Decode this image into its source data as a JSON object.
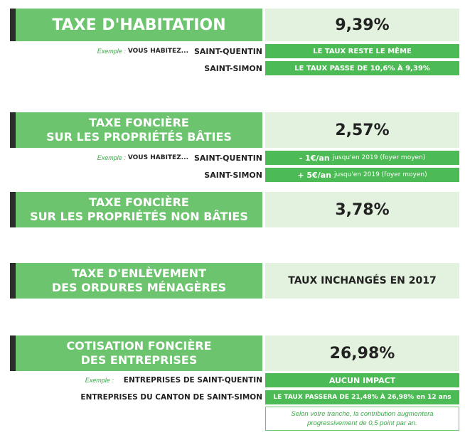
{
  "taxe_habitation": {
    "title": "TAXE D'HABITATION",
    "rate": "9,39%",
    "example_label": "Exemple :",
    "vous_habitez": "VOUS HABITEZ...",
    "city1": "SAINT-QUENTIN",
    "city1_result": "LE TAUX RESTE LE MÊME",
    "city2": "SAINT-SIMON",
    "city2_result": "LE TAUX PASSE DE 10,6% À 9,39%"
  },
  "taxe_fonciere_baties": {
    "title_line1": "TAXE FONCIÈRE",
    "title_line2": "SUR LES PROPRIÉTÉS BÂTIES",
    "rate": "2,57%",
    "example_label": "Exemple :",
    "vous_habitez": "VOUS HABITEZ...",
    "city1": "SAINT-QUENTIN",
    "city1_amount": "- 1€/an",
    "city1_detail": "jusqu'en 2019 (foyer moyen)",
    "city2": "SAINT-SIMON",
    "city2_amount": "+ 5€/an",
    "city2_detail": "jusqu'en 2019 (foyer moyen)"
  },
  "taxe_fonciere_non_baties": {
    "title_line1": "TAXE FONCIÈRE",
    "title_line2": "SUR LES PROPRIÉTÉS NON BÂTIES",
    "rate": "3,78%"
  },
  "teom": {
    "title_line1": "TAXE D'ENLÈVEMENT",
    "title_line2": "DES ORDURES MÉNAGÈRES",
    "value": "TAUX INCHANGÉS EN 2017"
  },
  "cfe": {
    "title_line1": "COTISATION FONCIÈRE",
    "title_line2": "DES ENTREPRISES",
    "rate": "26,98%",
    "example_label": "Exemple :",
    "row1_label": "ENTREPRISES DE SAINT-QUENTIN",
    "row1_result": "AUCUN IMPACT",
    "row2_label": "ENTREPRISES DU CANTON DE SAINT-SIMON",
    "row2_result": "LE TAUX PASSERA DE 21,48% À 26,98% en 12 ans",
    "note_line1": "Selon votre tranche, la contribution augmentera",
    "note_line2": "progressivement de 0,5 point par an."
  },
  "colors": {
    "green": "#6dc46e",
    "green_dark": "#4dbb55",
    "light": "#e2f2df",
    "bar": "#2d2d2d"
  }
}
